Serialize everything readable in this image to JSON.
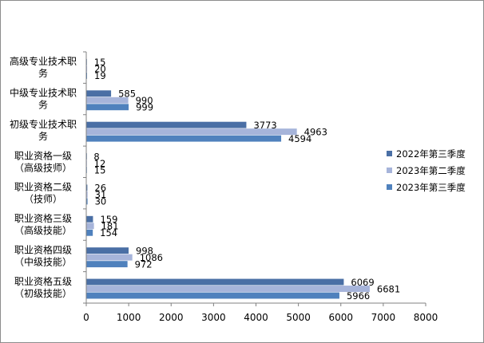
{
  "chart_data": {
    "type": "bar",
    "orientation": "horizontal",
    "categories": [
      [
        "高级专业技术职",
        "务"
      ],
      [
        "中级专业技术职",
        "务"
      ],
      [
        "初级专业技术职",
        "务"
      ],
      [
        "职业资格一级",
        "（高级技师）"
      ],
      [
        "职业资格二级",
        "（技师）"
      ],
      [
        "职业资格三级",
        "（高级技能）"
      ],
      [
        "职业资格四级",
        "（中级技能）"
      ],
      [
        "职业资格五级",
        "（初级技能）"
      ]
    ],
    "series": [
      {
        "name": "2022年第三季度",
        "color": "#4a6fa5",
        "values": [
          15,
          585,
          3773,
          8,
          26,
          159,
          998,
          6069
        ]
      },
      {
        "name": "2023年第二季度",
        "color": "#a6b4da",
        "values": [
          20,
          990,
          4963,
          12,
          31,
          181,
          1086,
          6681
        ]
      },
      {
        "name": "2023年第三季度",
        "color": "#4f81bd",
        "values": [
          19,
          999,
          4594,
          15,
          30,
          154,
          972,
          5966
        ]
      }
    ],
    "x_ticks": [
      "0",
      "1000",
      "2000",
      "3000",
      "4000",
      "5000",
      "6000",
      "7000",
      "8000"
    ],
    "xlim": [
      0,
      8000
    ],
    "grid": false,
    "legend_position": "right"
  }
}
